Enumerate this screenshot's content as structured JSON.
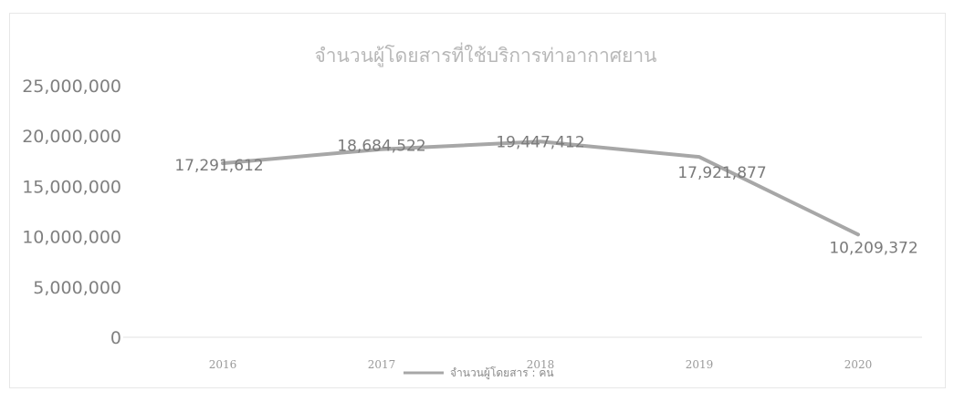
{
  "chart_data": {
    "type": "line",
    "title": "จำนวนผู้โดยสารที่ใช้บริการท่าอากาศยาน",
    "categories": [
      "2016",
      "2017",
      "2018",
      "2019",
      "2020"
    ],
    "series": [
      {
        "name": "จำนวนผู้โดยสาร : คน",
        "values": [
          17291612,
          18684522,
          19447412,
          17921877,
          10209372
        ],
        "data_labels": [
          "17,291,612",
          "18,684,522",
          "19,447,412",
          "17,921,877",
          "10,209,372"
        ]
      }
    ],
    "yticks": [
      "25,000,000",
      "20,000,000",
      "15,000,000",
      "10,000,000",
      "5,000,000",
      "0"
    ],
    "ylim": [
      0,
      25000000
    ],
    "grid": false,
    "legend_position": "bottom",
    "line_color": "#a7a7a7"
  }
}
